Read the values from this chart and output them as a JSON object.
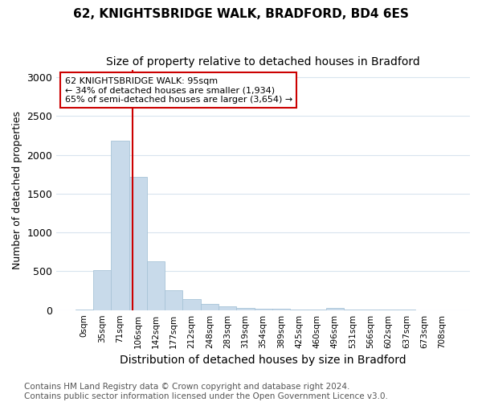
{
  "title": "62, KNIGHTSBRIDGE WALK, BRADFORD, BD4 6ES",
  "subtitle": "Size of property relative to detached houses in Bradford",
  "xlabel": "Distribution of detached houses by size in Bradford",
  "ylabel": "Number of detached properties",
  "bar_labels": [
    "0sqm",
    "35sqm",
    "71sqm",
    "106sqm",
    "142sqm",
    "177sqm",
    "212sqm",
    "248sqm",
    "283sqm",
    "319sqm",
    "354sqm",
    "389sqm",
    "425sqm",
    "460sqm",
    "496sqm",
    "531sqm",
    "566sqm",
    "602sqm",
    "637sqm",
    "673sqm",
    "708sqm"
  ],
  "bar_values": [
    10,
    520,
    2180,
    1720,
    630,
    260,
    140,
    80,
    45,
    30,
    20,
    15,
    12,
    10,
    30,
    5,
    3,
    3,
    2,
    1,
    1
  ],
  "bar_color": "#c8daea",
  "bar_edgecolor": "#a8c4d8",
  "vline_color": "#cc0000",
  "annotation_text": "62 KNIGHTSBRIDGE WALK: 95sqm\n← 34% of detached houses are smaller (1,934)\n65% of semi-detached houses are larger (3,654) →",
  "annotation_box_facecolor": "white",
  "annotation_box_edgecolor": "#cc0000",
  "ylim": [
    0,
    3100
  ],
  "yticks": [
    0,
    500,
    1000,
    1500,
    2000,
    2500,
    3000
  ],
  "bin_edges": [
    0,
    35,
    71,
    106,
    142,
    177,
    212,
    248,
    283,
    319,
    354,
    389,
    425,
    460,
    496,
    531,
    566,
    602,
    637,
    673,
    708
  ],
  "prop_size": 95,
  "background_color": "#ffffff",
  "grid_color": "#d8e4ee",
  "footer": "Contains HM Land Registry data © Crown copyright and database right 2024.\nContains public sector information licensed under the Open Government Licence v3.0.",
  "title_fontsize": 11,
  "subtitle_fontsize": 10,
  "xlabel_fontsize": 10,
  "ylabel_fontsize": 9,
  "annotation_fontsize": 8,
  "footer_fontsize": 7.5
}
